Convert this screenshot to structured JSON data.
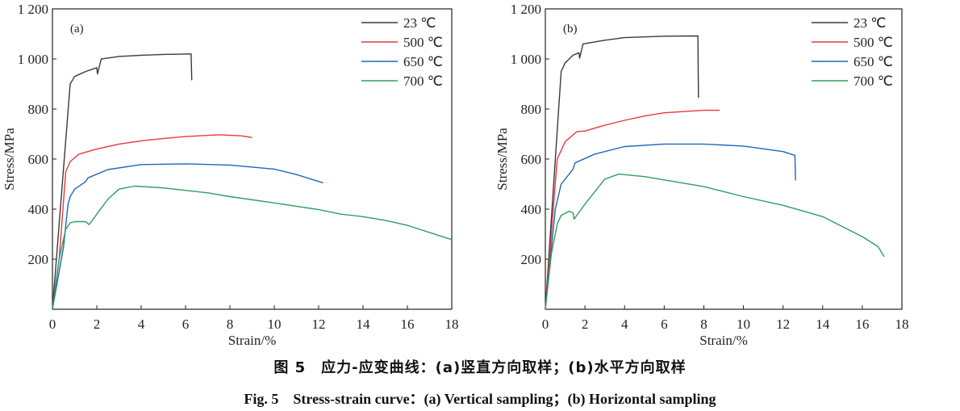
{
  "caption_cn": "图 5　应力-应变曲线：(a)竖直方向取样；(b)水平方向取样",
  "caption_en": "Fig. 5　Stress-strain curve：(a) Vertical sampling；(b) Horizontal sampling",
  "chart_data": [
    {
      "type": "line",
      "panel_label": "(a)",
      "xlabel": "Strain/%",
      "ylabel": "Stress/MPa",
      "xlim": [
        0,
        18
      ],
      "ylim": [
        0,
        1200
      ],
      "xticks": [
        "0",
        "2",
        "4",
        "6",
        "8",
        "10",
        "12",
        "14",
        "16",
        "18"
      ],
      "yticks": [
        "200",
        "400",
        "600",
        "800",
        "1 000",
        "1 200"
      ],
      "legend": "top-right",
      "grid": false,
      "series": [
        {
          "name": "23 ℃",
          "color": "#3a3a3a",
          "points": [
            [
              0,
              0
            ],
            [
              0.8,
              900
            ],
            [
              1,
              930
            ],
            [
              1.5,
              950
            ],
            [
              2,
              965
            ],
            [
              2.03,
              940
            ],
            [
              2.2,
              1000
            ],
            [
              3,
              1010
            ],
            [
              4,
              1015
            ],
            [
              5,
              1018
            ],
            [
              6.25,
              1020
            ],
            [
              6.28,
              915
            ]
          ]
        },
        {
          "name": "500 ℃",
          "color": "#e8383d",
          "points": [
            [
              0,
              0
            ],
            [
              0.3,
              200
            ],
            [
              0.6,
              550
            ],
            [
              0.8,
              590
            ],
            [
              1.2,
              620
            ],
            [
              2,
              640
            ],
            [
              3,
              660
            ],
            [
              4,
              673
            ],
            [
              5,
              682
            ],
            [
              6,
              690
            ],
            [
              7.5,
              697
            ],
            [
              8.5,
              693
            ],
            [
              9,
              686
            ]
          ]
        },
        {
          "name": "650 ℃",
          "color": "#2166b8",
          "points": [
            [
              0,
              0
            ],
            [
              0.5,
              250
            ],
            [
              0.7,
              420
            ],
            [
              0.8,
              450
            ],
            [
              1,
              480
            ],
            [
              1.5,
              510
            ],
            [
              1.6,
              525
            ],
            [
              2.5,
              558
            ],
            [
              4,
              578
            ],
            [
              6,
              581
            ],
            [
              8,
              576
            ],
            [
              10,
              560
            ],
            [
              11,
              538
            ],
            [
              12.2,
              505
            ]
          ]
        },
        {
          "name": "700 ℃",
          "color": "#2e9e5e",
          "points": [
            [
              0,
              0
            ],
            [
              0.3,
              200
            ],
            [
              0.6,
              320
            ],
            [
              0.8,
              345
            ],
            [
              1,
              350
            ],
            [
              1.5,
              350
            ],
            [
              1.65,
              338
            ],
            [
              2.5,
              440
            ],
            [
              3,
              480
            ],
            [
              3.7,
              492
            ],
            [
              5,
              485
            ],
            [
              7,
              465
            ],
            [
              8,
              450
            ],
            [
              10,
              425
            ],
            [
              12,
              398
            ],
            [
              13,
              380
            ],
            [
              14,
              370
            ],
            [
              15,
              355
            ],
            [
              16,
              335
            ],
            [
              18,
              278
            ]
          ]
        }
      ]
    },
    {
      "type": "line",
      "panel_label": "(b)",
      "xlabel": "Strain/%",
      "ylabel": "Stress/MPa",
      "xlim": [
        0,
        18
      ],
      "ylim": [
        0,
        1200
      ],
      "xticks": [
        "0",
        "2",
        "4",
        "6",
        "8",
        "10",
        "12",
        "14",
        "16",
        "18"
      ],
      "yticks": [
        "200",
        "400",
        "600",
        "800",
        "1 000",
        "1 200"
      ],
      "legend": "top-right",
      "grid": false,
      "series": [
        {
          "name": "23 ℃",
          "color": "#3a3a3a",
          "points": [
            [
              0,
              0
            ],
            [
              0.8,
              950
            ],
            [
              1,
              985
            ],
            [
              1.4,
              1015
            ],
            [
              1.7,
              1025
            ],
            [
              1.73,
              1003
            ],
            [
              1.9,
              1060
            ],
            [
              3,
              1075
            ],
            [
              4,
              1085
            ],
            [
              6,
              1091
            ],
            [
              7.7,
              1092
            ],
            [
              7.73,
              845
            ]
          ]
        },
        {
          "name": "500 ℃",
          "color": "#e8383d",
          "points": [
            [
              0,
              0
            ],
            [
              0.3,
              300
            ],
            [
              0.6,
              600
            ],
            [
              1,
              670
            ],
            [
              1.6,
              710
            ],
            [
              2,
              712
            ],
            [
              3,
              735
            ],
            [
              4,
              755
            ],
            [
              5,
              772
            ],
            [
              6,
              785
            ],
            [
              8,
              795
            ],
            [
              8.8,
              795
            ]
          ]
        },
        {
          "name": "650 ℃",
          "color": "#2166b8",
          "points": [
            [
              0,
              0
            ],
            [
              0.5,
              400
            ],
            [
              0.8,
              500
            ],
            [
              1.4,
              560
            ],
            [
              1.5,
              585
            ],
            [
              2.5,
              620
            ],
            [
              4,
              650
            ],
            [
              6,
              660
            ],
            [
              8,
              660
            ],
            [
              10,
              652
            ],
            [
              12,
              630
            ],
            [
              12.6,
              615
            ],
            [
              12.63,
              515
            ]
          ]
        },
        {
          "name": "700 ℃",
          "color": "#2e9e5e",
          "points": [
            [
              0,
              0
            ],
            [
              0.3,
              220
            ],
            [
              0.6,
              340
            ],
            [
              0.8,
              375
            ],
            [
              1.2,
              392
            ],
            [
              1.4,
              385
            ],
            [
              1.45,
              360
            ],
            [
              2,
              420
            ],
            [
              3,
              520
            ],
            [
              3.7,
              540
            ],
            [
              5,
              530
            ],
            [
              8,
              490
            ],
            [
              10,
              450
            ],
            [
              12,
              415
            ],
            [
              14,
              370
            ],
            [
              16,
              290
            ],
            [
              16.8,
              250
            ],
            [
              17.1,
              210
            ]
          ]
        }
      ]
    }
  ]
}
